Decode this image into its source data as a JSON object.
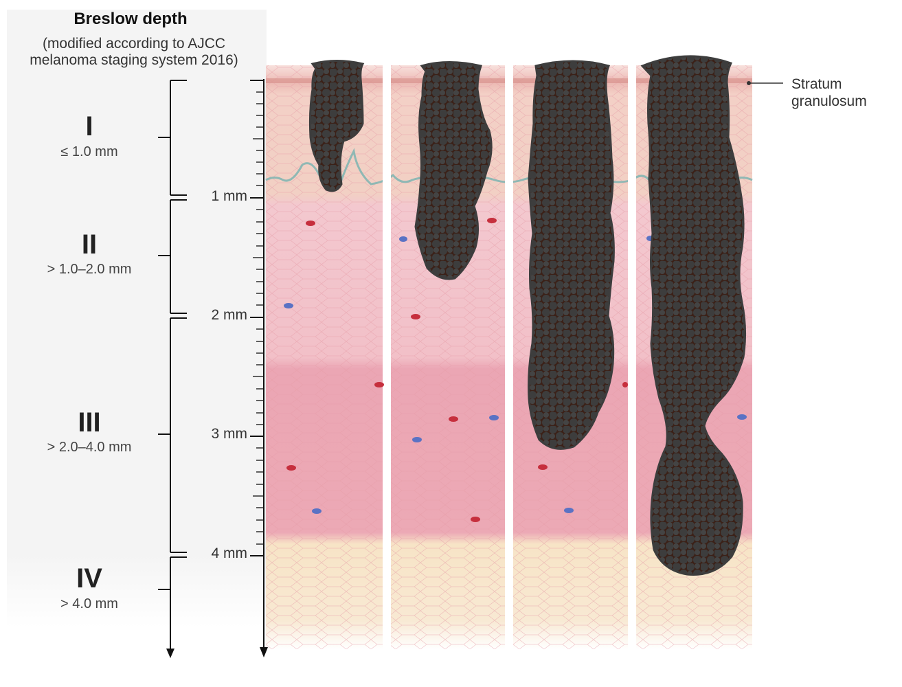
{
  "header": {
    "title": "Breslow depth",
    "subtitle_line1": "(modified according to AJCC",
    "subtitle_line2": "melanoma staging system 2016)"
  },
  "stages": [
    {
      "numeral": "I",
      "range": "≤ 1.0 mm"
    },
    {
      "numeral": "II",
      "range": "> 1.0–2.0 mm"
    },
    {
      "numeral": "III",
      "range": "> 2.0–4.0 mm"
    },
    {
      "numeral": "IV",
      "range": "> 4.0 mm"
    }
  ],
  "scale": {
    "labels": [
      "1 mm",
      "2 mm",
      "3 mm",
      "4 mm"
    ]
  },
  "callout": {
    "line1": "Stratum",
    "line2": "granulosum"
  },
  "colors": {
    "tumor": "#3c3c3c",
    "tumor_core": "#3a1e14",
    "epidermis": "#f1c9be",
    "dermis_upper": "#f3c4cb",
    "dermis_mid": "#eba7b4",
    "subcutis": "#f7e3c2",
    "vessel_red": "#c62f3d",
    "vessel_blue": "#5a72c4",
    "panel_bg": "#f4f4f4"
  }
}
